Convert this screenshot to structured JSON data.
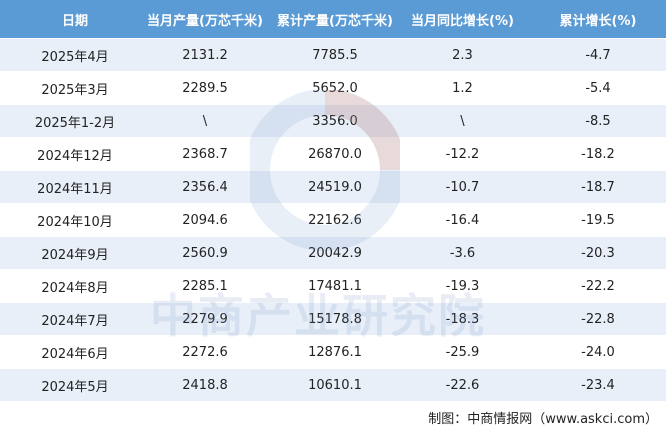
{
  "table": {
    "header": [
      "日期",
      "当月产量(万芯千米)",
      "累计产量(万芯千米)",
      "当月同比增长(%)",
      "累计增长(%)"
    ],
    "rows": [
      [
        "2025年4月",
        "2131.2",
        "7785.5",
        "2.3",
        "-4.7"
      ],
      [
        "2025年3月",
        "2289.5",
        "5652.0",
        "1.2",
        "-5.4"
      ],
      [
        "2025年1-2月",
        "\\",
        "3356.0",
        "\\",
        "-8.5"
      ],
      [
        "2024年12月",
        "2368.7",
        "26870.0",
        "-12.2",
        "-18.2"
      ],
      [
        "2024年11月",
        "2356.4",
        "24519.0",
        "-10.7",
        "-18.7"
      ],
      [
        "2024年10月",
        "2094.6",
        "22162.6",
        "-16.4",
        "-19.5"
      ],
      [
        "2024年9月",
        "2560.9",
        "20042.9",
        "-3.6",
        "-20.3"
      ],
      [
        "2024年8月",
        "2285.1",
        "17481.1",
        "-19.3",
        "-22.2"
      ],
      [
        "2024年7月",
        "2279.9",
        "15178.8",
        "-18.3",
        "-22.8"
      ],
      [
        "2024年6月",
        "2272.6",
        "12876.1",
        "-25.9",
        "-24.0"
      ],
      [
        "2024年5月",
        "2418.8",
        "10610.1",
        "-22.6",
        "-23.4"
      ]
    ]
  },
  "watermark": "中商产业研究院",
  "footer": "制图：中商情报网（www.askci.com）"
}
